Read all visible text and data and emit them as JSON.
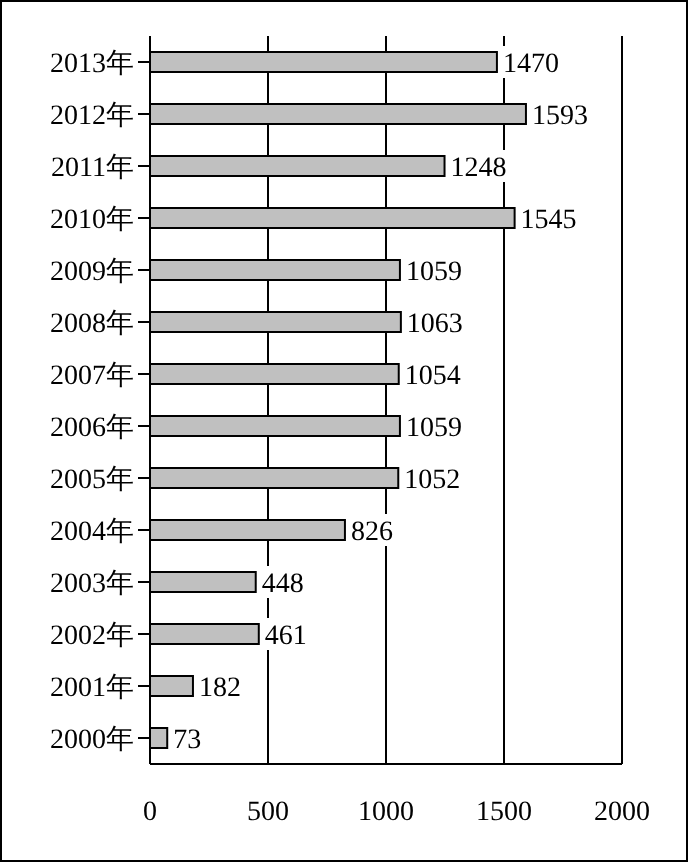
{
  "chart_data": {
    "type": "bar",
    "orientation": "horizontal",
    "categories": [
      "2013年",
      "2012年",
      "2011年",
      "2010年",
      "2009年",
      "2008年",
      "2007年",
      "2006年",
      "2005年",
      "2004年",
      "2003年",
      "2002年",
      "2001年",
      "2000年"
    ],
    "values": [
      1470,
      1593,
      1248,
      1545,
      1059,
      1063,
      1054,
      1059,
      1052,
      826,
      448,
      461,
      182,
      73
    ],
    "color": "#c0c0c0",
    "xlim": [
      0,
      2000
    ],
    "xticks": [
      0,
      500,
      1000,
      1500,
      2000
    ],
    "grid": "x",
    "data_labels": true
  }
}
